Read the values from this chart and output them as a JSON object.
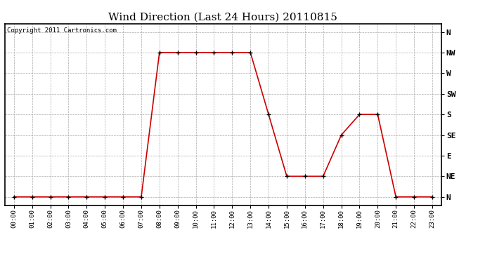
{
  "title": "Wind Direction (Last 24 Hours) 20110815",
  "copyright": "Copyright 2011 Cartronics.com",
  "background_color": "#ffffff",
  "line_color": "#cc0000",
  "marker": "+",
  "marker_color": "#000000",
  "grid_color": "#aaaaaa",
  "ytick_labels": [
    "N",
    "NE",
    "E",
    "SE",
    "S",
    "SW",
    "W",
    "NW",
    "N"
  ],
  "ytick_values": [
    0,
    1,
    2,
    3,
    4,
    5,
    6,
    7,
    8
  ],
  "hours": [
    0,
    1,
    2,
    3,
    4,
    5,
    6,
    7,
    8,
    9,
    10,
    11,
    12,
    13,
    14,
    15,
    16,
    17,
    18,
    19,
    20,
    21,
    22,
    23
  ],
  "wind_values": [
    0,
    0,
    0,
    0,
    0,
    0,
    0,
    0,
    7,
    7,
    7,
    7,
    7,
    7,
    4,
    1,
    1,
    1,
    3,
    4,
    4,
    0,
    0,
    0
  ],
  "xlim": [
    -0.5,
    23.5
  ],
  "ylim": [
    -0.4,
    8.4
  ]
}
